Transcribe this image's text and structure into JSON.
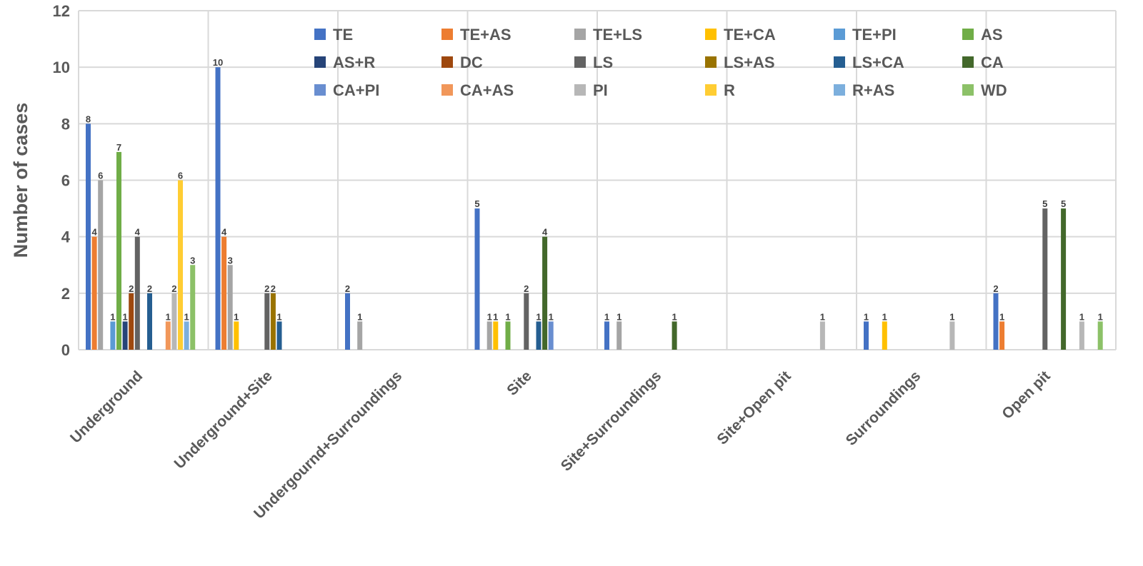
{
  "chart_data": {
    "type": "bar",
    "title": "",
    "xlabel": "",
    "ylabel": "Number of cases",
    "ylim": [
      0,
      12
    ],
    "yticks": [
      "0",
      "2",
      "4",
      "6",
      "8",
      "10",
      "12"
    ],
    "grid": true,
    "legend_position": "top-right",
    "categories": [
      "Underground",
      "Underground+Site",
      "Undergournd+Surroundings",
      "Site",
      "Site+Surroundings",
      "Site+Open pit",
      "Surroundings",
      "Open pit"
    ],
    "series": [
      {
        "name": "TE",
        "color": "#4472C4",
        "values": [
          8,
          10,
          2,
          5,
          1,
          0,
          1,
          2
        ]
      },
      {
        "name": "TE+AS",
        "color": "#ED7D31",
        "values": [
          4,
          4,
          0,
          0,
          0,
          0,
          0,
          1
        ]
      },
      {
        "name": "TE+LS",
        "color": "#A5A5A5",
        "values": [
          6,
          3,
          1,
          1,
          1,
          0,
          0,
          0
        ]
      },
      {
        "name": "TE+CA",
        "color": "#FFC000",
        "values": [
          0,
          1,
          0,
          1,
          0,
          0,
          1,
          0
        ]
      },
      {
        "name": "TE+PI",
        "color": "#5B9BD5",
        "values": [
          1,
          0,
          0,
          0,
          0,
          0,
          0,
          0
        ]
      },
      {
        "name": "AS",
        "color": "#70AD47",
        "values": [
          7,
          0,
          0,
          1,
          0,
          0,
          0,
          0
        ]
      },
      {
        "name": "AS+R",
        "color": "#264478",
        "values": [
          1,
          0,
          0,
          0,
          0,
          0,
          0,
          0
        ]
      },
      {
        "name": "DC",
        "color": "#9E480E",
        "values": [
          2,
          0,
          0,
          0,
          0,
          0,
          0,
          0
        ]
      },
      {
        "name": "LS",
        "color": "#636363",
        "values": [
          4,
          2,
          0,
          2,
          0,
          0,
          0,
          5
        ]
      },
      {
        "name": "LS+AS",
        "color": "#997300",
        "values": [
          0,
          2,
          0,
          0,
          0,
          0,
          0,
          0
        ]
      },
      {
        "name": "LS+CA",
        "color": "#255E91",
        "values": [
          2,
          1,
          0,
          1,
          0,
          0,
          0,
          0
        ]
      },
      {
        "name": "CA",
        "color": "#43682B",
        "values": [
          0,
          0,
          0,
          4,
          1,
          0,
          0,
          5
        ]
      },
      {
        "name": "CA+PI",
        "color": "#698ED0",
        "values": [
          0,
          0,
          0,
          1,
          0,
          0,
          0,
          0
        ]
      },
      {
        "name": "CA+AS",
        "color": "#F1975A",
        "values": [
          1,
          0,
          0,
          0,
          0,
          0,
          0,
          0
        ]
      },
      {
        "name": "PI",
        "color": "#B7B7B7",
        "values": [
          2,
          0,
          0,
          0,
          0,
          1,
          1,
          1
        ]
      },
      {
        "name": "R",
        "color": "#FFCD33",
        "values": [
          6,
          0,
          0,
          0,
          0,
          0,
          0,
          0
        ]
      },
      {
        "name": "R+AS",
        "color": "#7CAFDD",
        "values": [
          1,
          0,
          0,
          0,
          0,
          0,
          0,
          0
        ]
      },
      {
        "name": "WD",
        "color": "#8CC168",
        "values": [
          3,
          0,
          0,
          0,
          0,
          0,
          0,
          1
        ]
      }
    ]
  }
}
